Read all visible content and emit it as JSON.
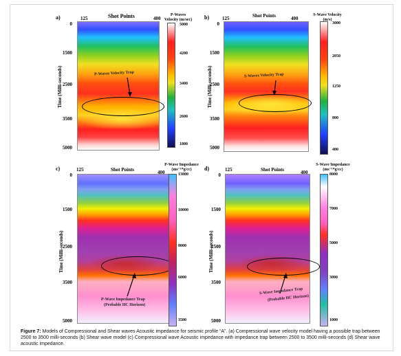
{
  "panels": [
    {
      "letter": "a)",
      "shot_label": "Shot Points",
      "shot_start": "125",
      "shot_end": "400",
      "y_label": "Time (Milli-seconds)",
      "y_ticks": [
        "0",
        "1500",
        "2500",
        "3500",
        "5000"
      ],
      "colorbar_title": "P-Waves Velocity (m/sec)",
      "colorbar_ticks": [
        "5000",
        "4200",
        "3400",
        "2600",
        "1800"
      ],
      "annotation": "P-Waves Velocity Trap"
    },
    {
      "letter": "b)",
      "shot_label": "Shot Points",
      "shot_start": "125",
      "shot_end": "400",
      "y_label": "Time (Milli-seconds)",
      "y_ticks": [
        "0",
        "1500",
        "2500",
        "3500",
        "5000"
      ],
      "colorbar_title": "S-Wave Velocity (m/s)",
      "colorbar_ticks": [
        "3000",
        "2050",
        "1250",
        "800",
        "400"
      ],
      "annotation": "S-Waves Velocity Trap"
    },
    {
      "letter": "c)",
      "shot_label": "Shot Points",
      "shot_start": "125",
      "shot_end": "400",
      "y_label": "Time (Milli-seconds)",
      "y_ticks": [
        "0",
        "1500",
        "2500",
        "3500",
        "5000"
      ],
      "colorbar_title": "P-Wave Impedance (ms⁻¹*g/cc)",
      "colorbar_ticks": [
        "13000",
        "10000",
        "8000",
        "6000",
        "3500"
      ],
      "annotation_line1": "P-Wave Impedance Trap",
      "annotation_line2": "(Probable HC Horizon)"
    },
    {
      "letter": "d)",
      "shot_label": "Shot Points",
      "shot_start": "125",
      "shot_end": "400",
      "y_label": "Time (Milli-seconds)",
      "y_ticks": [
        "0",
        "1500",
        "2500",
        "3500",
        "5000"
      ],
      "colorbar_title": "S-Wave Impedance (ms⁻¹*g/cc)",
      "colorbar_ticks": [
        "8000",
        "7000",
        "5000",
        "3000",
        "1000"
      ],
      "annotation_line1": "S-Wave Impedance Trap",
      "annotation_line2": "(Probable HC Horizon)"
    }
  ],
  "caption": {
    "prefix": "Figure 7:",
    "text": " Models of Compressional and Shear waves Acoustic impedance for seismic profile “A”. (a) Compressional wave velocity model having a possible trap between 2500 to 3500 milli-seconds (b) Shear wave model (c) Compressional wave Acoustic impedance with impedance trap between 2500 to 3500 milli-seconds (d) Shear wave acoustic impedance."
  },
  "colors": {
    "velocity_scale": [
      "#ffffff",
      "#ff2020",
      "#ffc000",
      "#20b040",
      "#2040ff",
      "#101050"
    ],
    "impedance_scale": [
      "#40c0ff",
      "#ff80e0",
      "#ff3020",
      "#9030c0",
      "#6080ff",
      "#c8b0f0"
    ]
  }
}
